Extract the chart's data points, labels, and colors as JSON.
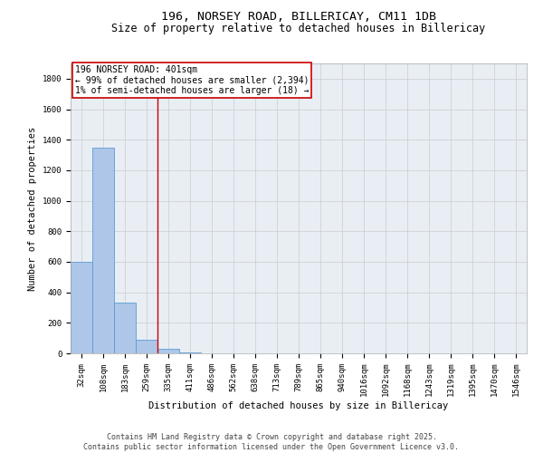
{
  "title_line1": "196, NORSEY ROAD, BILLERICAY, CM11 1DB",
  "title_line2": "Size of property relative to detached houses in Billericay",
  "xlabel": "Distribution of detached houses by size in Billericay",
  "ylabel": "Number of detached properties",
  "categories": [
    "32sqm",
    "108sqm",
    "183sqm",
    "259sqm",
    "335sqm",
    "411sqm",
    "486sqm",
    "562sqm",
    "638sqm",
    "713sqm",
    "789sqm",
    "865sqm",
    "940sqm",
    "1016sqm",
    "1092sqm",
    "1168sqm",
    "1243sqm",
    "1319sqm",
    "1395sqm",
    "1470sqm",
    "1546sqm"
  ],
  "values": [
    600,
    1350,
    330,
    90,
    28,
    5,
    0,
    0,
    0,
    0,
    0,
    0,
    0,
    0,
    0,
    0,
    0,
    0,
    0,
    0,
    0
  ],
  "bar_color": "#aec6e8",
  "bar_edge_color": "#5b9bd5",
  "vline_color": "#cc0000",
  "vline_x_index": 4,
  "box_edge_color": "#cc0000",
  "ylim": [
    0,
    1900
  ],
  "yticks": [
    0,
    200,
    400,
    600,
    800,
    1000,
    1200,
    1400,
    1600,
    1800
  ],
  "grid_color": "#cccccc",
  "bg_color": "#e8eef4",
  "footer_text": "Contains HM Land Registry data © Crown copyright and database right 2025.\nContains public sector information licensed under the Open Government Licence v3.0.",
  "title_fontsize": 9.5,
  "subtitle_fontsize": 8.5,
  "tick_fontsize": 6.5,
  "ylabel_fontsize": 7.5,
  "xlabel_fontsize": 7.5,
  "annotation_fontsize": 7,
  "footer_fontsize": 6
}
